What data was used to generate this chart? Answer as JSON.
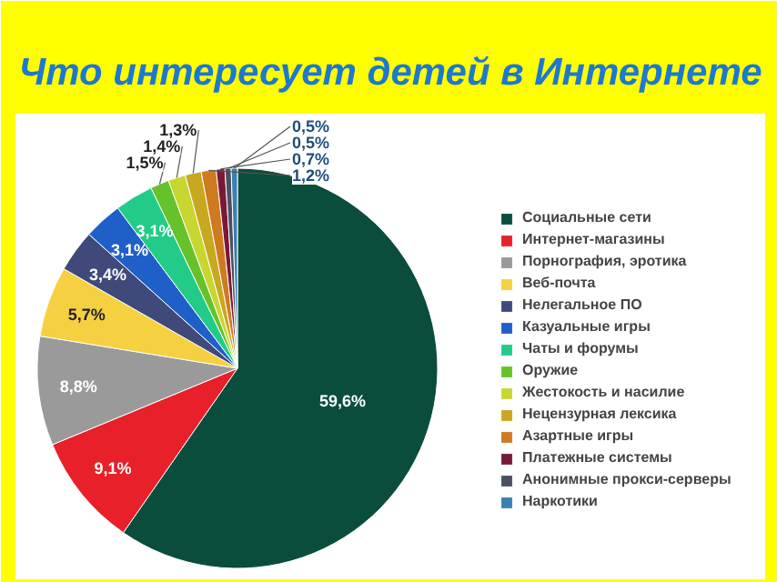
{
  "chart_data": {
    "type": "pie",
    "title": "Что интересует детей в Интернете",
    "categories": [
      "Социальные сети",
      "Интернет-магазины",
      "Порнография, эротика",
      "Веб-почта",
      "Нелегальное ПО",
      "Казуальные игры",
      "Чаты и форумы",
      "Оружие",
      "Жестокость и насилие",
      "Нецензурная лексика",
      "Азартные игры",
      "Платежные системы",
      "Анонимные прокси-серверы",
      "Наркотики"
    ],
    "values": [
      59.6,
      9.1,
      8.8,
      5.7,
      3.4,
      3.1,
      3.1,
      1.5,
      1.4,
      1.3,
      1.2,
      0.7,
      0.5,
      0.5
    ],
    "colors": [
      "#0b4d3c",
      "#e8202a",
      "#9a9a9a",
      "#f5d040",
      "#3f4a7a",
      "#1f5fc8",
      "#22cc88",
      "#66c22a",
      "#c8d630",
      "#c8a820",
      "#d07a20",
      "#7a1838",
      "#4a5060",
      "#3a80b0"
    ],
    "value_labels": [
      "59,6%",
      "9,1%",
      "8,8%",
      "5,7%",
      "3,4%",
      "3,1%",
      "3,1%",
      "1,5%",
      "1,4%",
      "1,3%",
      "1,2%",
      "0,7%",
      "0,5%",
      "0,5%"
    ],
    "legend": "right"
  }
}
